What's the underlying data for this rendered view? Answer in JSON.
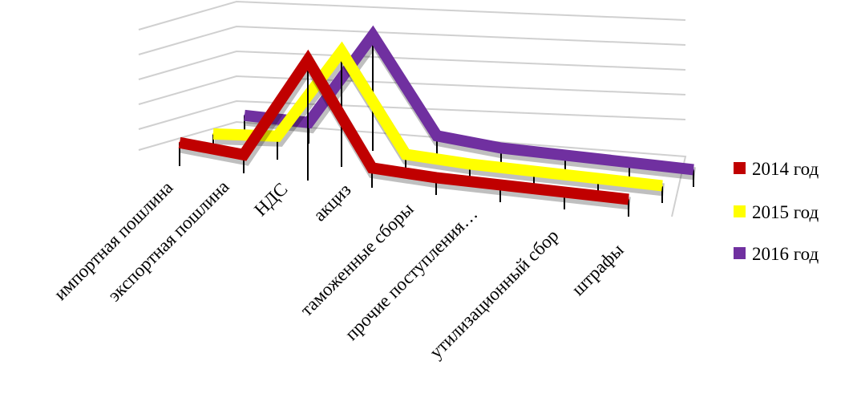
{
  "chart_data": {
    "type": "line",
    "style": "3d-ribbon",
    "title": "",
    "xlabel": "",
    "ylabel": "",
    "categories": [
      "импортная пошлина",
      "экспортная пошлина",
      "НДС",
      "акциз",
      "таможенные сборы",
      "прочие поступления…",
      "утилизационный сбор",
      "штрафы"
    ],
    "ylim": [
      0,
      5
    ],
    "grid": true,
    "legend_position": "right",
    "series": [
      {
        "name": "2014 год",
        "color": "#c00000",
        "values": [
          0.3,
          0.1,
          4.2,
          0.15,
          0.05,
          0.05,
          0.05,
          0.05
        ]
      },
      {
        "name": "2015 год",
        "color": "#ffff00",
        "values": [
          0.1,
          0.3,
          4.0,
          0.15,
          0.05,
          0.05,
          0.05,
          0.05
        ]
      },
      {
        "name": "2016 год",
        "color": "#7030a0",
        "values": [
          0.2,
          0.2,
          4.0,
          0.25,
          0.05,
          0.05,
          0.05,
          0.05
        ]
      }
    ]
  }
}
